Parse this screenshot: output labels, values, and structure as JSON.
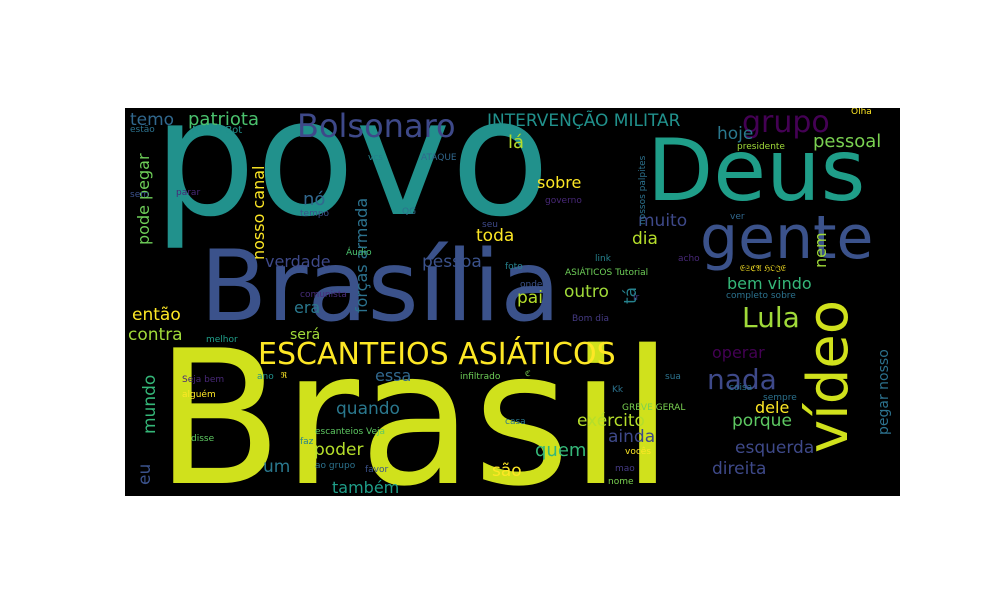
{
  "wordcloud": {
    "background": "#000000",
    "words": [
      {
        "text": "Brasil",
        "color": "#d0e11c"
      },
      {
        "text": "povo",
        "color": "#21918c"
      },
      {
        "text": "Brasília",
        "color": "#3b528b"
      },
      {
        "text": "Deus",
        "color": "#1f9e89"
      },
      {
        "text": "gente",
        "color": "#3b528b"
      },
      {
        "text": "vídeo",
        "color": "#d0e11c"
      },
      {
        "text": "ESCANTEIOS ASIÁTICOS",
        "color": "#fde725"
      },
      {
        "text": "Bolsonaro",
        "color": "#3e4989"
      },
      {
        "text": "grupo",
        "color": "#440154"
      },
      {
        "text": "Lula",
        "color": "#a0da39"
      },
      {
        "text": "nada",
        "color": "#3e4989"
      },
      {
        "text": "INTERVENÇÃO MILITAR",
        "color": "#21918c"
      },
      {
        "text": "patriota",
        "color": "#4ac16d"
      },
      {
        "text": "temo",
        "color": "#31688e"
      },
      {
        "text": "lá",
        "color": "#b5de2b"
      },
      {
        "text": "hoje",
        "color": "#2a788e"
      },
      {
        "text": "pessoal",
        "color": "#7ad151"
      },
      {
        "text": "sobre",
        "color": "#fde725"
      },
      {
        "text": "nosso canal",
        "color": "#fde725"
      },
      {
        "text": "pode pegar",
        "color": "#6ece58"
      },
      {
        "text": "nó",
        "color": "#31688e"
      },
      {
        "text": "toda",
        "color": "#fde725"
      },
      {
        "text": "muito",
        "color": "#3e4989"
      },
      {
        "text": "dia",
        "color": "#b5de2b"
      },
      {
        "text": "nem",
        "color": "#a0da39"
      },
      {
        "text": "forças armada",
        "color": "#2c728e"
      },
      {
        "text": "verdade",
        "color": "#3e4989"
      },
      {
        "text": "pessoa",
        "color": "#3b528b"
      },
      {
        "text": "bem vindo",
        "color": "#35b779"
      },
      {
        "text": "pai",
        "color": "#b5de2b"
      },
      {
        "text": "outro",
        "color": "#a0da39"
      },
      {
        "text": "tá",
        "color": "#26828e"
      },
      {
        "text": "então",
        "color": "#fde725"
      },
      {
        "text": "era",
        "color": "#2a788e"
      },
      {
        "text": "contra",
        "color": "#a0da39"
      },
      {
        "text": "será",
        "color": "#a0da39"
      },
      {
        "text": "operar",
        "color": "#440154"
      },
      {
        "text": "essa",
        "color": "#31688e"
      },
      {
        "text": "mundo",
        "color": "#35b779"
      },
      {
        "text": "quando",
        "color": "#2a788e"
      },
      {
        "text": "dele",
        "color": "#fde725"
      },
      {
        "text": "exército",
        "color": "#b5de2b"
      },
      {
        "text": "porque",
        "color": "#5ec962"
      },
      {
        "text": "ainda",
        "color": "#3e4989"
      },
      {
        "text": "esquerda",
        "color": "#3e4989"
      },
      {
        "text": "poder",
        "color": "#b5de2b"
      },
      {
        "text": "quem",
        "color": "#35b779"
      },
      {
        "text": "eu",
        "color": "#3b528b"
      },
      {
        "text": "um",
        "color": "#2a788e"
      },
      {
        "text": "são",
        "color": "#fde725"
      },
      {
        "text": "direita",
        "color": "#3e4989"
      },
      {
        "text": "também",
        "color": "#1f9e89"
      },
      {
        "text": "pegar nosso",
        "color": "#2c728e"
      },
      {
        "text": "estão",
        "color": "#2c728e"
      },
      {
        "text": "Nosso Bot",
        "color": "#21918c"
      },
      {
        "text": "vcs",
        "color": "#26828e"
      },
      {
        "text": "ATAQUE",
        "color": "#31688e"
      },
      {
        "text": "nossos palpites",
        "color": "#2c728e"
      },
      {
        "text": "presidente",
        "color": "#a0da39"
      },
      {
        "text": "Olha",
        "color": "#fde725"
      },
      {
        "text": "sem",
        "color": "#3b528b"
      },
      {
        "text": "parar",
        "color": "#482878"
      },
      {
        "text": "tempo",
        "color": "#3b528b"
      },
      {
        "text": "governo",
        "color": "#482878"
      },
      {
        "text": "ver",
        "color": "#31688e"
      },
      {
        "text": "seu",
        "color": "#3e4989"
      },
      {
        "text": "QG",
        "color": "#2c728e"
      },
      {
        "text": "Áudio",
        "color": "#4ac16d"
      },
      {
        "text": "link",
        "color": "#26828e"
      },
      {
        "text": "acho",
        "color": "#482878"
      },
      {
        "text": "foto",
        "color": "#26828e"
      },
      {
        "text": "ASIÁTICOS Tutorial",
        "color": "#6ece58"
      },
      {
        "text": "𝔈𝔖ℭ𝔄 ℌ𝔒𝔍𝔈",
        "color": "#fde725"
      },
      {
        "text": "onde",
        "color": "#3b528b"
      },
      {
        "text": "comunista",
        "color": "#472c7a"
      },
      {
        "text": "ir",
        "color": "#443a83"
      },
      {
        "text": "completo sobre",
        "color": "#2c728e"
      },
      {
        "text": "Bom dia",
        "color": "#443a83"
      },
      {
        "text": "melhor",
        "color": "#1f9e89"
      },
      {
        "text": "Seja bem",
        "color": "#482878"
      },
      {
        "text": "ano",
        "color": "#21918c"
      },
      {
        "text": "𝔓𝔄𝔏𝔓𝔌𝔗𝔈𝔖 𝔊𝔄ℜ𝔄",
        "color": "#fde725"
      },
      {
        "text": "infiltrado",
        "color": "#6ece58"
      },
      {
        "text": "𝔈𝔖ℭ𝔄𝔑𝔗𝔈𝔌𝔒𝔖 𝔄𝔖𝔌𝔄",
        "color": "#7ad151"
      },
      {
        "text": "sua",
        "color": "#2c728e"
      },
      {
        "text": "Kk",
        "color": "#2c728e"
      },
      {
        "text": "coisa",
        "color": "#2c728e"
      },
      {
        "text": "sempre",
        "color": "#2c728e"
      },
      {
        "text": "alguém",
        "color": "#fde725"
      },
      {
        "text": "GREVE GERAL",
        "color": "#7ad151"
      },
      {
        "text": "casa",
        "color": "#2a788e"
      },
      {
        "text": "disse",
        "color": "#5ec962"
      },
      {
        "text": "faz",
        "color": "#26828e"
      },
      {
        "text": "escanteios Veja",
        "color": "#5ec962"
      },
      {
        "text": "ao grupo",
        "color": "#2c728e"
      },
      {
        "text": "favor",
        "color": "#3b528b"
      },
      {
        "text": "vocês",
        "color": "#fde725"
      },
      {
        "text": "mao",
        "color": "#443a83"
      },
      {
        "text": "nome",
        "color": "#7ad151"
      }
    ]
  }
}
